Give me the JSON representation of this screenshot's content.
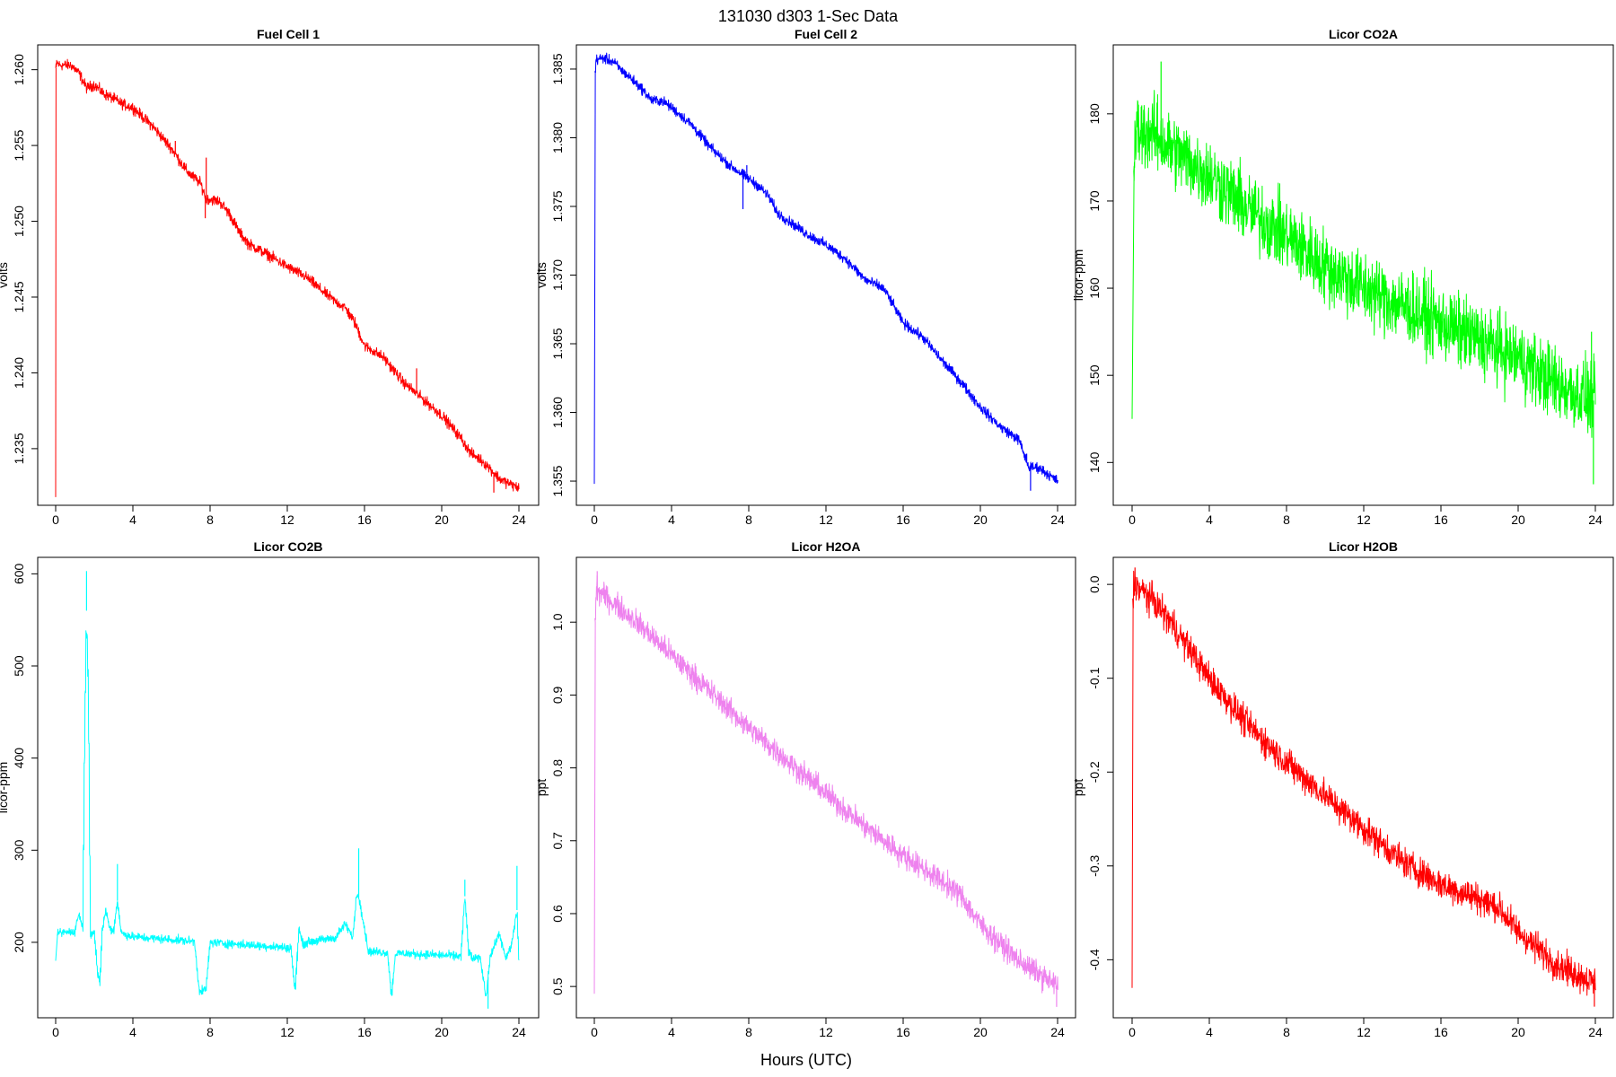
{
  "page": {
    "title": "131030   d303   1-Sec Data",
    "x_axis_title": "Hours (UTC)"
  },
  "chart_data": [
    {
      "type": "line",
      "title": "Fuel Cell 1",
      "ylabel": "volts",
      "xlabel": "",
      "color": "#ff0000",
      "xlim": [
        0,
        24
      ],
      "ylim": [
        1.2315,
        1.2614
      ],
      "x_ticks": [
        0,
        4,
        8,
        12,
        16,
        20,
        24
      ],
      "y_ticks": [
        "1.235",
        "1.240",
        "1.245",
        "1.250",
        "1.255",
        "1.260"
      ],
      "noise": 0.0003,
      "series": [
        {
          "x": [
            0,
            0.02,
            0.05,
            0.2,
            0.8,
            1.2,
            1.6,
            2.0,
            2.5,
            3.0,
            3.5,
            4.0,
            5.0,
            6.0,
            6.8,
            7.5,
            7.8,
            8.5,
            9.0,
            9.5,
            10.0,
            11.0,
            12.0,
            13.0,
            14.0,
            14.5,
            15.0,
            15.5,
            16.0,
            17.0,
            18.0,
            19.0,
            20.0,
            21.0,
            21.5,
            22.0,
            22.5,
            23.0,
            23.5,
            24.0
          ],
          "y": [
            1.2318,
            1.2601,
            1.2605,
            1.2603,
            1.2603,
            1.2598,
            1.2588,
            1.259,
            1.2584,
            1.2581,
            1.2577,
            1.2575,
            1.2563,
            1.2548,
            1.2533,
            1.2525,
            1.2515,
            1.2513,
            1.2505,
            1.2493,
            1.2485,
            1.2478,
            1.247,
            1.2463,
            1.2452,
            1.2447,
            1.2443,
            1.2433,
            1.2418,
            1.241,
            1.2394,
            1.2383,
            1.2372,
            1.2357,
            1.2347,
            1.2343,
            1.2337,
            1.233,
            1.2327,
            1.2324
          ]
        }
      ],
      "spikes": [
        {
          "x": 6.2,
          "y": 1.2553
        },
        {
          "x": 7.8,
          "y": 1.2542
        },
        {
          "x": 7.75,
          "y": 1.2502
        },
        {
          "x": 18.7,
          "y": 1.2403
        },
        {
          "x": 22.7,
          "y": 1.2321
        }
      ]
    },
    {
      "type": "line",
      "title": "Fuel Cell 2",
      "ylabel": "volts",
      "xlabel": "",
      "color": "#0000ff",
      "xlim": [
        0,
        24
      ],
      "ylim": [
        1.3535,
        1.3865
      ],
      "x_ticks": [
        0,
        4,
        8,
        12,
        16,
        20,
        24
      ],
      "y_ticks": [
        "1.355",
        "1.360",
        "1.365",
        "1.370",
        "1.375",
        "1.380",
        "1.385"
      ],
      "noise": 0.00032,
      "series": [
        {
          "x": [
            0,
            0.05,
            0.1,
            0.5,
            1.0,
            1.5,
            2.0,
            2.5,
            3.0,
            3.5,
            4.0,
            5.0,
            6.0,
            7.0,
            7.8,
            8.5,
            9.0,
            9.5,
            10.0,
            11.0,
            12.0,
            13.0,
            14.0,
            15.0,
            15.5,
            16.0,
            17.0,
            18.0,
            19.0,
            20.0,
            21.0,
            22.0,
            22.5,
            23.0,
            23.5,
            24.0
          ],
          "y": [
            1.3548,
            1.3848,
            1.3857,
            1.3858,
            1.3855,
            1.3848,
            1.3842,
            1.3835,
            1.3827,
            1.3827,
            1.3822,
            1.381,
            1.3793,
            1.378,
            1.3772,
            1.3765,
            1.3758,
            1.3745,
            1.374,
            1.373,
            1.3722,
            1.3712,
            1.3697,
            1.369,
            1.3678,
            1.3665,
            1.3655,
            1.3638,
            1.3622,
            1.3604,
            1.359,
            1.358,
            1.356,
            1.356,
            1.3555,
            1.355
          ]
        }
      ],
      "spikes": [
        {
          "x": 7.7,
          "y": 1.3748
        },
        {
          "x": 7.9,
          "y": 1.378
        },
        {
          "x": 22.6,
          "y": 1.3543
        },
        {
          "x": 22.4,
          "y": 1.357
        }
      ]
    },
    {
      "type": "line",
      "title": "Licor CO2A",
      "ylabel": "licor-ppm",
      "xlabel": "",
      "color": "#00ff00",
      "xlim": [
        0,
        24
      ],
      "ylim": [
        135.5,
        187.5
      ],
      "x_ticks": [
        0,
        4,
        8,
        12,
        16,
        20,
        24
      ],
      "y_ticks": [
        "140",
        "150",
        "160",
        "170",
        "180"
      ],
      "noise": 3.6,
      "series": [
        {
          "x": [
            0,
            0.1,
            0.2,
            1,
            2,
            4,
            6,
            8,
            10,
            12,
            14,
            16,
            18,
            20,
            22,
            24
          ],
          "y": [
            145,
            174,
            178,
            178,
            176,
            173,
            169,
            166,
            162.5,
            160,
            158,
            156,
            154,
            152,
            149,
            147
          ]
        }
      ],
      "spikes": [
        {
          "x": 1.5,
          "y": 186
        },
        {
          "x": 23.9,
          "y": 137.5
        },
        {
          "x": 23.8,
          "y": 155
        }
      ]
    },
    {
      "type": "line",
      "title": "Licor CO2B",
      "ylabel": "licor-ppm",
      "xlabel": "",
      "color": "#00ffff",
      "xlim": [
        0,
        24
      ],
      "ylim": [
        122,
        614
      ],
      "x_ticks": [
        0,
        4,
        8,
        12,
        16,
        20,
        24
      ],
      "y_ticks": [
        "200",
        "300",
        "400",
        "500"
      ],
      "extra_tick": "600",
      "noise": 4,
      "series": [
        {
          "x": [
            0,
            0.1,
            1.0,
            1.2,
            1.4,
            1.5,
            1.6,
            1.7,
            1.8,
            2.0,
            2.2,
            2.3,
            2.4,
            2.6,
            2.8,
            3.0,
            3.2,
            3.4,
            4,
            7.2,
            7.4,
            7.5,
            7.8,
            8.0,
            12.2,
            12.4,
            12.6,
            12.8,
            13.0,
            14.5,
            15.0,
            15.4,
            15.6,
            15.8,
            16.0,
            16.2,
            17.2,
            17.4,
            17.6,
            18,
            21.0,
            21.2,
            21.4,
            21.6,
            22.0,
            22.3,
            22.5,
            22.8,
            23.0,
            23.3,
            23.6,
            23.9,
            24
          ],
          "y": [
            180,
            210,
            212,
            232,
            215,
            420,
            560,
            470,
            210,
            212,
            160,
            155,
            212,
            235,
            215,
            212,
            245,
            210,
            206,
            201,
            155,
            145,
            150,
            200,
            194,
            145,
            215,
            198,
            200,
            205,
            220,
            205,
            255,
            240,
            215,
            190,
            189,
            140,
            188,
            188,
            185,
            250,
            190,
            182,
            183,
            140,
            184,
            200,
            210,
            182,
            195,
            235,
            180
          ]
        }
      ],
      "spikes": [
        {
          "x": 1.6,
          "y": 603
        },
        {
          "x": 3.2,
          "y": 285
        },
        {
          "x": 15.7,
          "y": 302
        },
        {
          "x": 21.2,
          "y": 268
        },
        {
          "x": 23.9,
          "y": 283
        },
        {
          "x": 22.4,
          "y": 128
        }
      ]
    },
    {
      "type": "line",
      "title": "Licor H2OA",
      "ylabel": "ppt",
      "xlabel": "",
      "color": "#ee82ee",
      "xlim": [
        0,
        24
      ],
      "ylim": [
        0.462,
        1.084
      ],
      "x_ticks": [
        0,
        4,
        8,
        12,
        16,
        20,
        24
      ],
      "y_ticks": [
        "0.5",
        "0.6",
        "0.7",
        "0.8",
        "0.9",
        "1.0"
      ],
      "noise": 0.014,
      "series": [
        {
          "x": [
            0,
            0.05,
            0.1,
            2,
            4,
            6,
            8,
            10,
            12,
            14,
            16,
            18,
            19,
            20,
            22,
            24
          ],
          "y": [
            0.49,
            1.0,
            1.045,
            1.005,
            0.955,
            0.905,
            0.855,
            0.81,
            0.765,
            0.72,
            0.68,
            0.645,
            0.625,
            0.585,
            0.535,
            0.5
          ]
        }
      ],
      "spikes": [
        {
          "x": 0.15,
          "y": 1.07
        },
        {
          "x": 23.95,
          "y": 0.472
        }
      ]
    },
    {
      "type": "line",
      "title": "Licor H2OB",
      "ylabel": "ppt",
      "xlabel": "",
      "color": "#ff0000",
      "xlim": [
        0,
        24
      ],
      "ylim": [
        -0.458,
        0.025
      ],
      "x_ticks": [
        0,
        4,
        8,
        12,
        16,
        20,
        24
      ],
      "y_ticks": [
        "-0.4",
        "-0.3",
        "-0.2",
        "-0.1",
        "0.0"
      ],
      "noise": 0.014,
      "series": [
        {
          "x": [
            0,
            0.05,
            0.1,
            1,
            2,
            4,
            6,
            8,
            10,
            12,
            14,
            16,
            18,
            19,
            20,
            22,
            24
          ],
          "y": [
            -0.43,
            -0.02,
            0.0,
            -0.015,
            -0.04,
            -0.1,
            -0.15,
            -0.19,
            -0.225,
            -0.26,
            -0.295,
            -0.32,
            -0.335,
            -0.345,
            -0.37,
            -0.405,
            -0.425
          ]
        }
      ],
      "spikes": [
        {
          "x": 0.15,
          "y": 0.018
        },
        {
          "x": 23.95,
          "y": -0.45
        }
      ]
    }
  ]
}
